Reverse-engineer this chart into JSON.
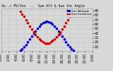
{
  "title": "So..r PV/Inv  ..  Sun Alt & Sun Inc Angle",
  "title_color": "#000000",
  "bg_color": "#d8d8d8",
  "plot_bg_color": "#d8d8d8",
  "grid_color": "#aaaaaa",
  "legend_colors": [
    "#0000cc",
    "#cc0000"
  ],
  "legend_bg": "#d8d8d8",
  "y_ticks": [
    10,
    20,
    30,
    40,
    50,
    60,
    70,
    80,
    90
  ],
  "ylim": [
    0,
    95
  ],
  "xlim": [
    0,
    24
  ],
  "num_points": 48,
  "sun_altitude_x": [
    5.0,
    5.5,
    6.0,
    6.5,
    7.0,
    7.5,
    8.0,
    8.5,
    9.0,
    9.5,
    10.0,
    10.5,
    11.0,
    11.5,
    12.0,
    12.5,
    13.0,
    13.5,
    14.0,
    14.5,
    15.0,
    15.5,
    16.0,
    16.5,
    17.0,
    17.5,
    18.0,
    18.5,
    19.0
  ],
  "sun_altitude_y": [
    2,
    5,
    9,
    14,
    20,
    27,
    33,
    39,
    45,
    51,
    56,
    60,
    63,
    65,
    66,
    65,
    63,
    60,
    56,
    51,
    45,
    39,
    33,
    27,
    20,
    14,
    9,
    5,
    2
  ],
  "sun_incidence_x": [
    5.0,
    5.5,
    6.0,
    6.5,
    7.0,
    7.5,
    8.0,
    8.5,
    9.0,
    9.5,
    10.0,
    10.5,
    11.0,
    11.5,
    12.0,
    12.5,
    13.0,
    13.5,
    14.0,
    14.5,
    15.0,
    15.5,
    16.0,
    16.5,
    17.0,
    17.5,
    18.0,
    18.5,
    19.0
  ],
  "sun_incidence_y": [
    88,
    83,
    77,
    70,
    63,
    56,
    49,
    43,
    37,
    31,
    27,
    23,
    20,
    18,
    17,
    18,
    20,
    23,
    27,
    31,
    37,
    43,
    49,
    56,
    63,
    70,
    77,
    83,
    88
  ],
  "x_tick_positions": [
    0,
    2,
    4,
    6,
    8,
    10,
    12,
    14,
    16,
    18,
    20,
    22,
    24
  ],
  "x_tick_labels": [
    "0:00",
    "2:00",
    "4:00",
    "6:00",
    "8:00",
    "10:00",
    "12:00",
    "14:00",
    "16:00",
    "18:00",
    "20:00",
    "22:00",
    "0:00"
  ],
  "dot_size": 2.5,
  "tick_fontsize": 3.5,
  "title_fontsize": 3.5,
  "legend_fontsize": 3.0
}
